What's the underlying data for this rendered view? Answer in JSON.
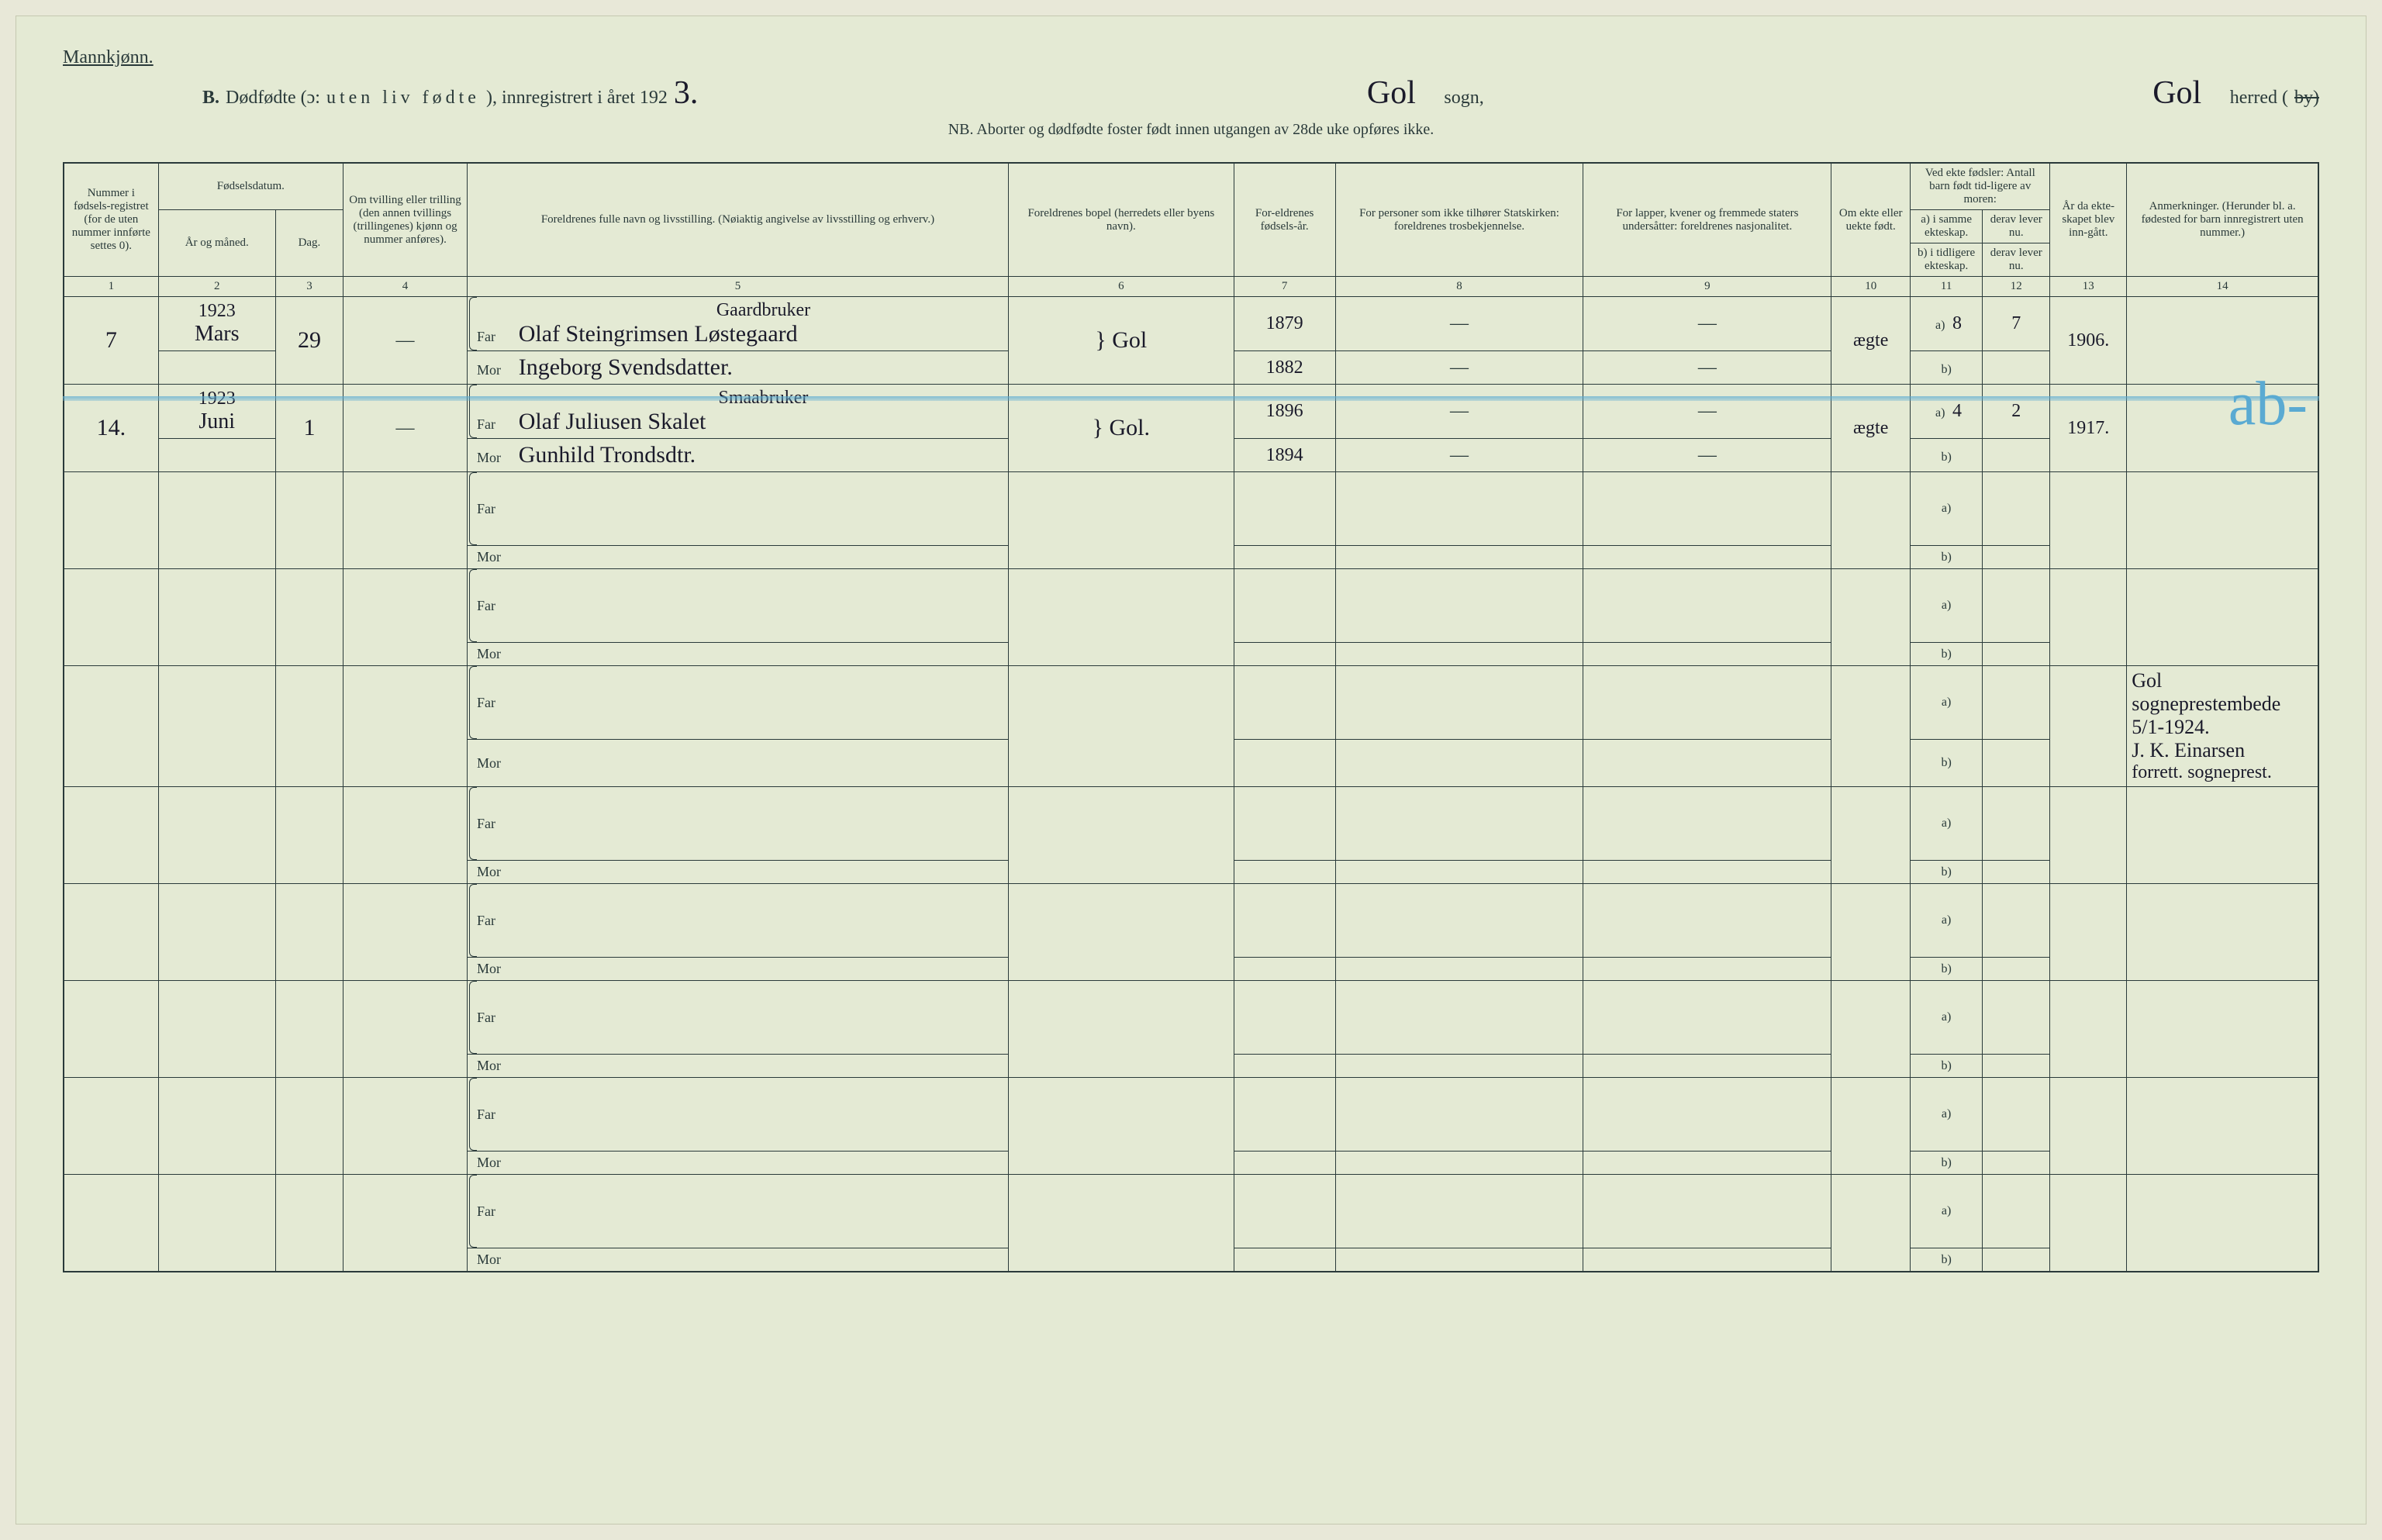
{
  "colors": {
    "page_bg": "#e4ead4",
    "ink": "#2a3a3a",
    "handwriting": "#1a1a2a",
    "blue_pencil": "#5aaad2",
    "border": "#2a3a3a"
  },
  "typography": {
    "print_family": "Georgia, Times New Roman, serif",
    "handwriting_family": "Brush Script MT, cursive",
    "header_size_pt": 18,
    "cell_size_pt": 11,
    "handwriting_size_pt": 22
  },
  "header": {
    "mannkjonn": "Mannkjønn.",
    "section_b": "B.",
    "title_main": "Dødfødte (ɔ:",
    "title_spaced": "uten liv fødte",
    "title_tail": "), innregistrert i året 192",
    "year_hand": "3.",
    "sogn_hand": "Gol",
    "sogn_label": "sogn,",
    "herred_hand": "Gol",
    "herred_label": "herred (",
    "by_struck": "by)",
    "nb_line": "NB.  Aborter og dødfødte foster født innen utgangen av 28de uke opføres ikke."
  },
  "columns": {
    "c1": "Nummer i fødsels-registret (for de uten nummer innførte settes 0).",
    "c2_top": "Fødselsdatum.",
    "c2a": "År og måned.",
    "c2b": "Dag.",
    "c4": "Om tvilling eller trilling (den annen tvillings (trillingenes) kjønn og nummer anføres).",
    "c5": "Foreldrenes fulle navn og livsstilling. (Nøiaktig angivelse av livsstilling og erhverv.)",
    "c6": "Foreldrenes bopel (herredets eller byens navn).",
    "c7": "For-eldrenes fødsels-år.",
    "c8": "For personer som ikke tilhører Statskirken: foreldrenes trosbekjennelse.",
    "c9": "For lapper, kvener og fremmede staters undersåtter: foreldrenes nasjonalitet.",
    "c10": "Om ekte eller uekte født.",
    "c11_top": "Ved ekte fødsler: Antall barn født tid-ligere av moren:",
    "c11a": "a) i samme ekteskap.",
    "c11b": "b) i tidligere ekteskap.",
    "c12a": "derav lever nu.",
    "c12b": "derav lever nu.",
    "c13": "År da ekte-skapet blev inn-gått.",
    "c14": "Anmerkninger. (Herunder bl. a. fødested for barn innregistrert uten nummer.)",
    "nums": [
      "1",
      "2",
      "3",
      "4",
      "5",
      "6",
      "7",
      "8",
      "9",
      "10",
      "11",
      "12",
      "13",
      "14"
    ]
  },
  "labels": {
    "far": "Far",
    "mor": "Mor",
    "a": "a)",
    "b": "b)"
  },
  "entries": [
    {
      "num": "7",
      "year": "1923",
      "month": "Mars",
      "day": "29",
      "twin": "—",
      "occupation": "Gaardbruker",
      "far": "Olaf Steingrimsen Løstegaard",
      "mor": "Ingeborg Svendsdatter.",
      "bopel": "Gol",
      "far_year": "1879",
      "mor_year": "1882",
      "c8_far": "—",
      "c8_mor": "—",
      "c9_far": "—",
      "c9_mor": "—",
      "ekte": "ægte",
      "c11a": "8",
      "c12a": "7",
      "c11b": "",
      "c12b": "",
      "c13": "1906.",
      "note": ""
    },
    {
      "num": "14.",
      "year": "1923",
      "month": "Juni",
      "day": "1",
      "twin": "—",
      "occupation": "Smaabruker",
      "far": "Olaf Juliusen Skalet",
      "mor": "Gunhild Trondsdtr.",
      "bopel": "Gol.",
      "far_year": "1896",
      "mor_year": "1894",
      "c8_far": "—",
      "c8_mor": "—",
      "c9_far": "—",
      "c9_mor": "—",
      "ekte": "ægte",
      "c11a": "4",
      "c12a": "2",
      "c11b": "",
      "c12b": "",
      "c13": "1917.",
      "note": ""
    }
  ],
  "remarks_note": {
    "line1": "Gol sogneprestembede 5/1-1924.",
    "line2": "J. K. Einarsen",
    "line3": "forrett. sogneprest."
  },
  "blue_annotation": "ab-",
  "layout": {
    "col_widths_pct": [
      4.2,
      5.2,
      3.0,
      5.5,
      24.0,
      10.0,
      4.5,
      11.0,
      11.0,
      3.5,
      3.2,
      3.0,
      3.4,
      8.5
    ],
    "empty_rows": 8
  }
}
